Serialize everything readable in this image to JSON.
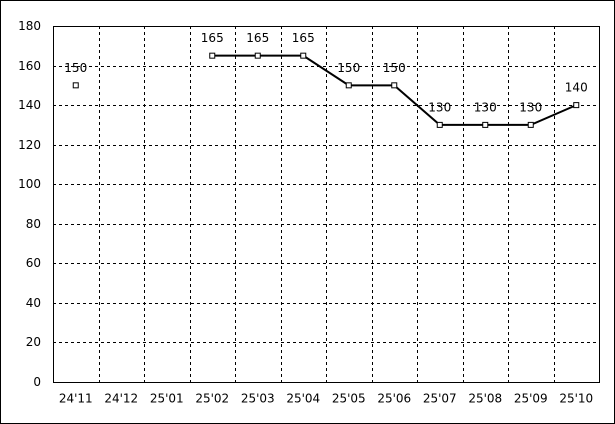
{
  "chart_data": {
    "type": "line",
    "categories": [
      "24'11",
      "24'12",
      "25'01",
      "25'02",
      "25'03",
      "25'04",
      "25'05",
      "25'06",
      "25'07",
      "25'08",
      "25'09",
      "25'10"
    ],
    "values": [
      150,
      null,
      null,
      165,
      165,
      165,
      150,
      150,
      130,
      130,
      130,
      140
    ],
    "color": "#000000",
    "ylim": [
      0,
      180
    ],
    "yticks": [
      0,
      20,
      40,
      60,
      80,
      100,
      120,
      140,
      160,
      180
    ],
    "grid": true,
    "data_labels": true
  }
}
